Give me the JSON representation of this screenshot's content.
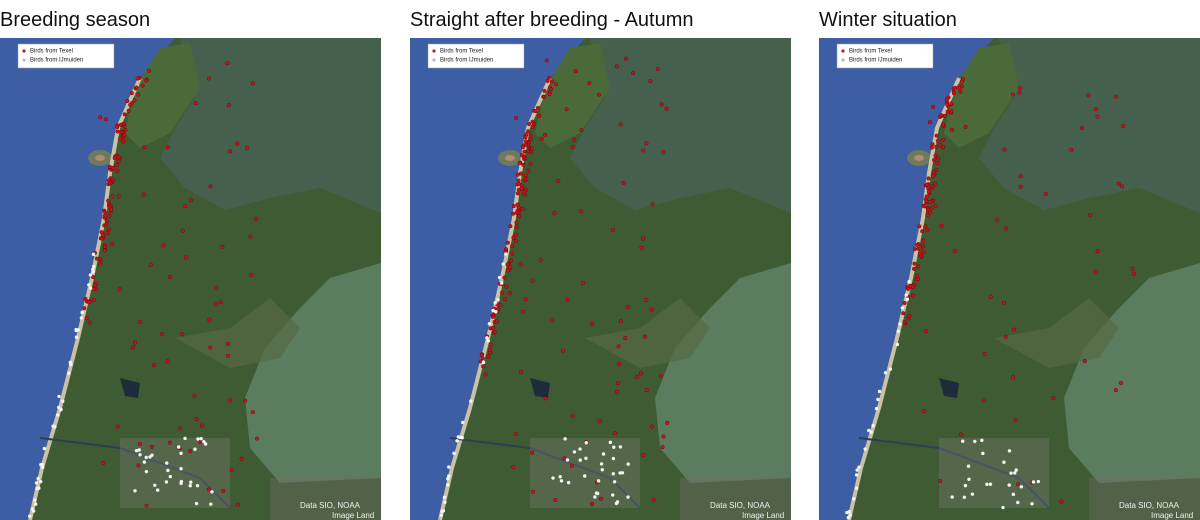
{
  "panels": [
    {
      "title": "Breeding season",
      "legend": [
        "Birds from Texel",
        "Birds from IJmuiden"
      ],
      "attribution": [
        "Data SIO, NOAA",
        "Image Land"
      ]
    },
    {
      "title": "Straight after breeding - Autumn",
      "legend": [
        "Birds from Texel",
        "Birds from IJmuiden"
      ],
      "attribution": [
        "Data SIO, NOAA",
        "Image Land"
      ]
    },
    {
      "title": "Winter situation",
      "legend": [
        "Birds from Texel",
        "Birds from IJmuiden"
      ],
      "attribution": [
        "Data SIO, NOAA",
        "Image Land"
      ]
    }
  ]
}
